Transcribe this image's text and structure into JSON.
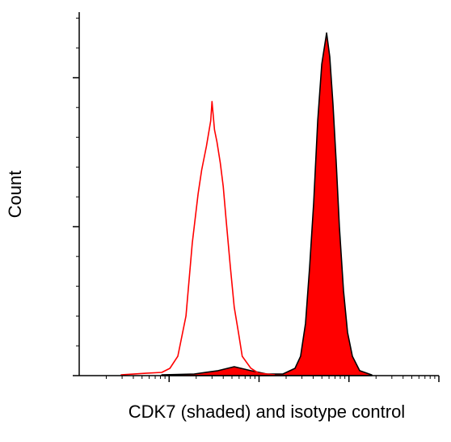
{
  "chart_data": {
    "type": "histogram-overlay",
    "ylabel": "Count",
    "xlabel": "CDK7 (shaded) and isotype control",
    "xscale": "log",
    "xlim": [
      1,
      10000
    ],
    "xticks": [
      10,
      100,
      1000,
      10000
    ],
    "minor_xticks": [
      2,
      3,
      4,
      5,
      6,
      7,
      8,
      9,
      20,
      30,
      40,
      50,
      60,
      70,
      80,
      90,
      200,
      300,
      400,
      500,
      600,
      700,
      800,
      900,
      2000,
      3000,
      4000,
      5000,
      6000,
      7000,
      8000,
      9000
    ],
    "ylim": [
      0,
      244
    ],
    "yticks": [
      0,
      100,
      200
    ],
    "minor_yticks": [
      20,
      40,
      60,
      80,
      120,
      140,
      160,
      180,
      220,
      240
    ],
    "series": [
      {
        "color": "#ff0000",
        "line_color": "#000000",
        "fill": true,
        "x": [
          8.3,
          19,
          35,
          53,
          81,
          122,
          184,
          251,
          290,
          329,
          365,
          405,
          449,
          498,
          564,
          612,
          664,
          722,
          783,
          869,
          964,
          1092,
          1315,
          1795
        ],
        "values": [
          0.5,
          1.1,
          3.3,
          6,
          3.3,
          1.1,
          1.1,
          4.9,
          13,
          35,
          73,
          116,
          171,
          209,
          230,
          214,
          182,
          143,
          100,
          57,
          29,
          13,
          3.3,
          0.5
        ]
      },
      {
        "color": "#ff0000",
        "fill": false,
        "x": [
          2.9,
          5.5,
          8.3,
          10.2,
          12.5,
          15.4,
          18.1,
          21,
          23,
          26,
          29,
          30,
          32,
          34,
          37,
          40,
          43,
          48,
          53,
          59,
          65,
          81,
          99,
          150
        ],
        "values": [
          0.5,
          1.6,
          2.2,
          4.9,
          13,
          40,
          89,
          122,
          138,
          154,
          171,
          184,
          165,
          157,
          143,
          127,
          105,
          73,
          46,
          29,
          13,
          5,
          1.6,
          0.5
        ]
      }
    ]
  }
}
